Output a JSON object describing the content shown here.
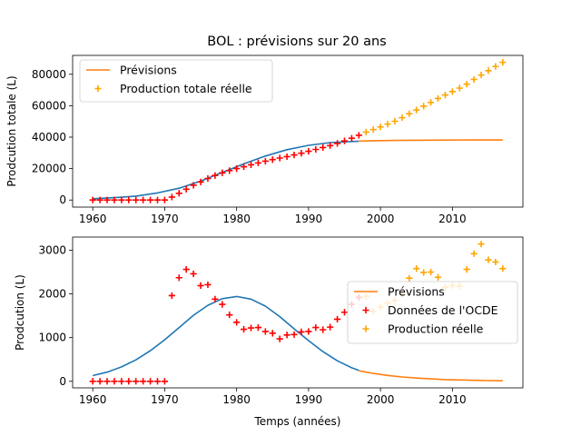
{
  "title": "BOL : prévisions sur 20 ans",
  "colors": {
    "fit": "#1f77b4",
    "forecast": "#ff7f0e",
    "oecd": "#ff0000",
    "real": "#ffa500"
  },
  "chart_data": [
    {
      "type": "line",
      "ylabel": "Prodcution totale (L)",
      "xlim": [
        1957.2,
        2019.8
      ],
      "ylim": [
        -4500,
        92000
      ],
      "xticks": [
        1960,
        1970,
        1980,
        1990,
        2000,
        2010
      ],
      "yticks": [
        0,
        20000,
        40000,
        60000,
        80000
      ],
      "ytick_labels": [
        "0",
        "20000",
        "40000",
        "60000",
        "80000"
      ],
      "legend_position": "upper left",
      "legend": [
        {
          "label": "Prévisions",
          "kind": "line",
          "color": "#ff7f0e"
        },
        {
          "label": "Production totale réelle",
          "kind": "plus",
          "color": "#ffa500"
        }
      ],
      "series": [
        {
          "kind": "line",
          "color": "#1f77b4",
          "x": [
            1960,
            1963,
            1966,
            1969,
            1972,
            1975,
            1978,
            1981,
            1984,
            1987,
            1990,
            1993,
            1996,
            1997
          ],
          "y": [
            800,
            1500,
            2500,
            4500,
            7500,
            12000,
            17500,
            23000,
            28000,
            32000,
            34800,
            36500,
            37200,
            37400
          ]
        },
        {
          "kind": "line",
          "color": "#ff7f0e",
          "x": [
            1997,
            2002,
            2007,
            2012,
            2017
          ],
          "y": [
            37500,
            37900,
            38100,
            38200,
            38200
          ]
        },
        {
          "kind": "plus",
          "color": "#ff0000",
          "x": [
            1960,
            1961,
            1962,
            1963,
            1964,
            1965,
            1966,
            1967,
            1968,
            1969,
            1970,
            1971,
            1972,
            1973,
            1974,
            1975,
            1976,
            1977,
            1978,
            1979,
            1980,
            1981,
            1982,
            1983,
            1984,
            1985,
            1986,
            1987,
            1988,
            1989,
            1990,
            1991,
            1992,
            1993,
            1994,
            1995,
            1996,
            1997
          ],
          "y": [
            0,
            0,
            0,
            0,
            0,
            0,
            0,
            0,
            0,
            0,
            0,
            1900,
            4300,
            6900,
            9400,
            11500,
            13700,
            15600,
            17300,
            18700,
            20000,
            21200,
            22400,
            23600,
            24700,
            25700,
            26700,
            27600,
            28700,
            29800,
            31000,
            32200,
            33400,
            34600,
            36000,
            37600,
            39300,
            41200
          ]
        },
        {
          "kind": "plus",
          "color": "#ffa500",
          "x": [
            1998,
            1999,
            2000,
            2001,
            2002,
            2003,
            2004,
            2005,
            2006,
            2007,
            2008,
            2009,
            2010,
            2011,
            2012,
            2013,
            2014,
            2015,
            2016,
            2017
          ],
          "y": [
            43200,
            44800,
            46500,
            48300,
            50100,
            52400,
            54900,
            57300,
            59700,
            62100,
            64600,
            66800,
            69000,
            71200,
            73700,
            76700,
            79500,
            82300,
            85000,
            87600
          ]
        }
      ]
    },
    {
      "type": "line",
      "xlabel": "Temps (années)",
      "ylabel": "Prodcution (L)",
      "xlim": [
        1957.2,
        2019.8
      ],
      "ylim": [
        -150,
        3300
      ],
      "xticks": [
        1960,
        1970,
        1980,
        1990,
        2000,
        2010
      ],
      "yticks": [
        0,
        1000,
        2000,
        3000
      ],
      "ytick_labels": [
        "0",
        "1000",
        "2000",
        "3000"
      ],
      "legend_position": "center right",
      "legend": [
        {
          "label": "Prévisions",
          "kind": "line",
          "color": "#ff7f0e"
        },
        {
          "label": "Données de l'OCDE",
          "kind": "plus",
          "color": "#ff0000"
        },
        {
          "label": "Production réelle",
          "kind": "plus",
          "color": "#ffa500"
        }
      ],
      "series": [
        {
          "kind": "line",
          "color": "#1f77b4",
          "x": [
            1960,
            1962,
            1964,
            1966,
            1968,
            1970,
            1972,
            1974,
            1976,
            1978,
            1980,
            1982,
            1984,
            1986,
            1988,
            1990,
            1992,
            1994,
            1996,
            1997
          ],
          "y": [
            130,
            210,
            330,
            490,
            700,
            950,
            1230,
            1510,
            1740,
            1890,
            1940,
            1880,
            1720,
            1480,
            1200,
            930,
            680,
            470,
            310,
            250
          ]
        },
        {
          "kind": "line",
          "color": "#ff7f0e",
          "x": [
            1997,
            1999,
            2001,
            2003,
            2005,
            2007,
            2009,
            2011,
            2013,
            2015,
            2017
          ],
          "y": [
            240,
            180,
            135,
            100,
            75,
            55,
            40,
            30,
            22,
            16,
            12
          ]
        },
        {
          "kind": "plus",
          "color": "#ff0000",
          "x": [
            1960,
            1961,
            1962,
            1963,
            1964,
            1965,
            1966,
            1967,
            1968,
            1969,
            1970,
            1971,
            1972,
            1973,
            1974,
            1975,
            1976,
            1977,
            1978,
            1979,
            1980,
            1981,
            1982,
            1983,
            1984,
            1985,
            1986,
            1987,
            1988,
            1989,
            1990,
            1991,
            1992,
            1993,
            1994,
            1995,
            1996,
            1997
          ],
          "y": [
            0,
            0,
            0,
            0,
            0,
            0,
            0,
            0,
            0,
            0,
            0,
            1960,
            2370,
            2560,
            2460,
            2190,
            2210,
            1880,
            1760,
            1520,
            1350,
            1190,
            1220,
            1230,
            1140,
            1100,
            970,
            1060,
            1070,
            1130,
            1140,
            1230,
            1180,
            1240,
            1420,
            1580,
            1760,
            1920
          ]
        },
        {
          "kind": "plus",
          "color": "#ffa500",
          "x": [
            1998,
            1999,
            2000,
            2001,
            2002,
            2003,
            2004,
            2005,
            2006,
            2007,
            2008,
            2009,
            2010,
            2011,
            2012,
            2013,
            2014,
            2015,
            2016,
            2017
          ],
          "y": [
            1940,
            1600,
            1700,
            1790,
            1850,
            2000,
            2360,
            2580,
            2490,
            2500,
            2380,
            2150,
            2190,
            2180,
            2560,
            2920,
            3140,
            2780,
            2730,
            2580
          ]
        }
      ]
    }
  ]
}
